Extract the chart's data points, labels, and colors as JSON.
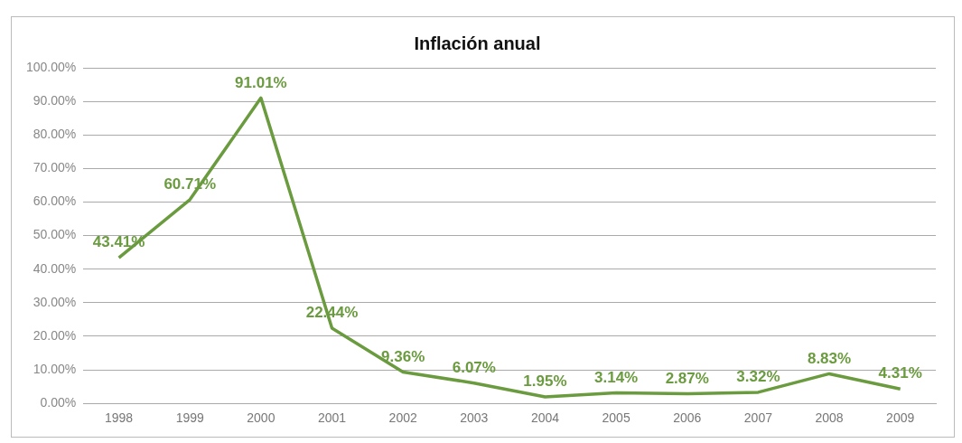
{
  "chart_data": {
    "type": "line",
    "title": "Inflación anual",
    "categories": [
      "1998",
      "1999",
      "2000",
      "2001",
      "2002",
      "2003",
      "2004",
      "2005",
      "2006",
      "2007",
      "2008",
      "2009"
    ],
    "series": [
      {
        "color": "#6b9b3f",
        "values": [
          43.41,
          60.71,
          91.01,
          22.44,
          9.36,
          6.07,
          1.95,
          3.14,
          2.87,
          3.32,
          8.83,
          4.31
        ],
        "value_labels": [
          "43.41%",
          "60.71%",
          "91.01%",
          "22.44%",
          "9.36%",
          "6.07%",
          "1.95%",
          "3.14%",
          "2.87%",
          "3.32%",
          "8.83%",
          "4.31%"
        ]
      }
    ],
    "ylim": [
      0,
      100
    ],
    "yticks": [
      {
        "value": 0,
        "label": "0.00%"
      },
      {
        "value": 10,
        "label": "10.00%"
      },
      {
        "value": 20,
        "label": "20.00%"
      },
      {
        "value": 30,
        "label": "30.00%"
      },
      {
        "value": 40,
        "label": "40.00%"
      },
      {
        "value": 50,
        "label": "50.00%"
      },
      {
        "value": 60,
        "label": "60.00%"
      },
      {
        "value": 70,
        "label": "70.00%"
      },
      {
        "value": 80,
        "label": "80.00%"
      },
      {
        "value": 90,
        "label": "90.00%"
      },
      {
        "value": 100,
        "label": "100.00%"
      }
    ],
    "grid": "y",
    "legend": false,
    "marker": "none",
    "line_style": "solid"
  }
}
